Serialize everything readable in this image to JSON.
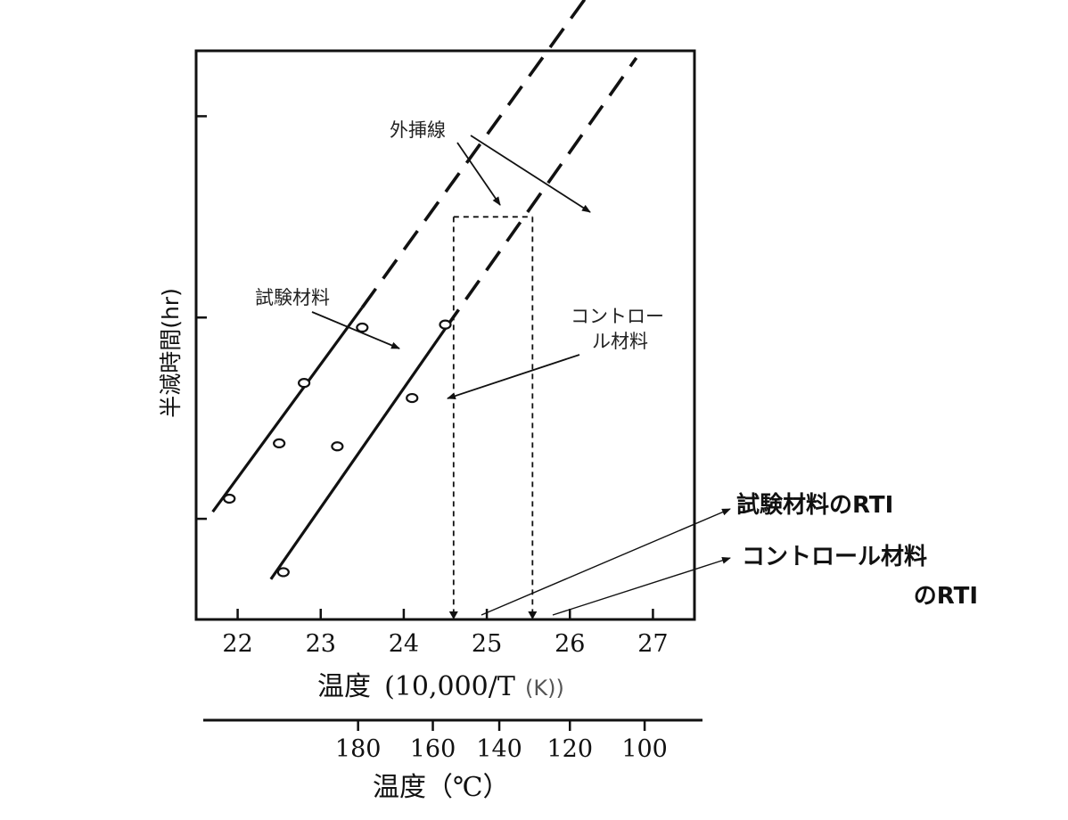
{
  "chart_data": {
    "type": "scatter",
    "ylabel": "半減時間(hr)",
    "xlabel": "温度",
    "xlabel_unit": "(10,000/T",
    "xlabel_unit_k": "(K))",
    "xlim": [
      21.5,
      27.5
    ],
    "x_ticks": [
      "22",
      "23",
      "24",
      "25",
      "26",
      "27"
    ],
    "x_tick_values": [
      22,
      23,
      24,
      25,
      26,
      27
    ],
    "secondary_xlabel": "温度（℃）",
    "secondary_ticks": [
      "180",
      "160",
      "140",
      "120",
      "100"
    ],
    "secondary_tick_positions": [
      23.45,
      24.35,
      25.15,
      26.0,
      26.9
    ],
    "ylim": [
      0,
      5.65
    ],
    "y_tick_values": [
      1,
      3,
      5
    ],
    "grid": false,
    "series": [
      {
        "name": "試験材料",
        "x": [
          21.9,
          22.5,
          22.8,
          23.5
        ],
        "y": [
          1.2,
          1.75,
          2.35,
          2.9
        ],
        "fit_solid": [
          [
            21.7,
            1.07
          ],
          [
            23.5,
            3.1
          ]
        ],
        "fit_dashed": [
          [
            23.5,
            3.1
          ],
          [
            26.3,
            6.3
          ]
        ]
      },
      {
        "name": "コントロール材料",
        "x": [
          22.55,
          23.2,
          24.1,
          24.5
        ],
        "y": [
          0.47,
          1.72,
          2.2,
          2.93
        ],
        "fit_solid": [
          [
            22.4,
            0.4
          ],
          [
            24.5,
            2.89
          ]
        ],
        "fit_dashed": [
          [
            24.5,
            2.89
          ],
          [
            26.8,
            5.58
          ]
        ]
      }
    ],
    "rti_box": {
      "x1": 24.6,
      "x2": 25.55,
      "y_top": 4.0
    },
    "annotations": {
      "extrapolation": "外挿線",
      "test_material": "試験材料",
      "control_line1": "コントロー",
      "control_line2": "ル材料",
      "rti_test": "試験材料のRTI",
      "rti_control_line1": "コントロール材料",
      "rti_control_line2": "のRTI"
    }
  }
}
